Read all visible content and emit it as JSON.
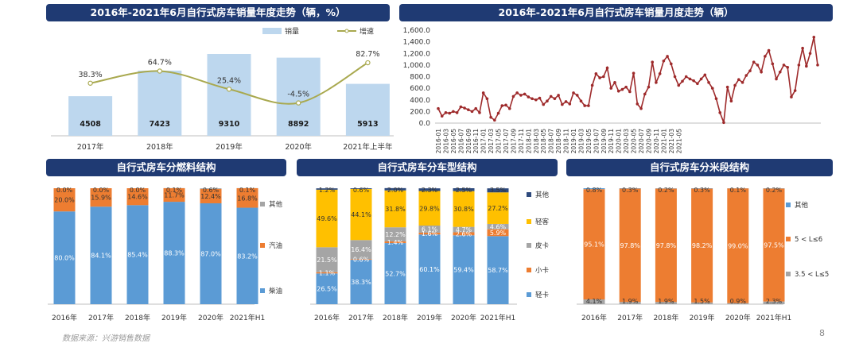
{
  "page": {
    "source": "数据来源：兴游销售数据",
    "page_number": "8"
  },
  "colors": {
    "banner": "#1f3a73",
    "bar_light": "#bdd7ee",
    "blue": "#5b9bd5",
    "orange": "#ed7d31",
    "gray": "#a5a5a5",
    "yellow": "#ffc000",
    "line_olive": "#a9a94f",
    "line_red": "#9e2a2b"
  },
  "chart_data": [
    {
      "id": "annual",
      "type": "bar",
      "title": "2016年-2021年6月自行式房车销量年度走势（辆，%）",
      "categories": [
        "2017年",
        "2018年",
        "2019年",
        "2020年",
        "2021年上半年"
      ],
      "series": [
        {
          "name": "销量",
          "type": "bar",
          "values": [
            4508,
            7423,
            9310,
            8892,
            5913
          ],
          "labels": [
            "4508",
            "7423",
            "9310",
            "8892",
            "5913"
          ]
        },
        {
          "name": "增速",
          "type": "line",
          "values": [
            38.3,
            64.7,
            25.4,
            -4.5,
            82.7
          ],
          "labels": [
            "38.3%",
            "64.7%",
            "25.4%",
            "-4.5%",
            "82.7%"
          ]
        }
      ],
      "legend": "top-right"
    },
    {
      "id": "monthly",
      "type": "line",
      "title": "2016年-2021年6月自行式房车销量月度走势（辆）",
      "ylim": [
        0,
        1600
      ],
      "yticks": [
        "0.0",
        "200.0",
        "400.0",
        "600.0",
        "800.0",
        "1,000.0",
        "1,200.0",
        "1,400.0",
        "1,600.0"
      ],
      "xticks": [
        "2016-01",
        "2016-03",
        "2016-05",
        "2016-07",
        "2016-09",
        "2016-11",
        "2017-01",
        "2017-03",
        "2017-05",
        "2017-07",
        "2017-09",
        "2017-11",
        "2018-01",
        "2018-03",
        "2018-05",
        "2018-07",
        "2018-09",
        "2018-11",
        "2019-01",
        "2019-03",
        "2019-05",
        "2019-07",
        "2019-09",
        "2019-11",
        "2020-01",
        "2020-03",
        "2020-05",
        "2020-07",
        "2020-09",
        "2020-11",
        "2021-01",
        "2021-03",
        "2021-05"
      ],
      "values": [
        250,
        120,
        180,
        170,
        200,
        180,
        280,
        260,
        230,
        200,
        250,
        180,
        520,
        420,
        100,
        50,
        170,
        300,
        310,
        250,
        460,
        520,
        480,
        500,
        450,
        420,
        400,
        430,
        320,
        380,
        460,
        420,
        480,
        320,
        370,
        330,
        520,
        480,
        380,
        300,
        300,
        650,
        850,
        780,
        800,
        950,
        600,
        700,
        550,
        580,
        620,
        540,
        860,
        330,
        250,
        500,
        620,
        1050,
        700,
        850,
        1070,
        1150,
        1020,
        800,
        650,
        720,
        800,
        760,
        730,
        680,
        760,
        830,
        700,
        600,
        420,
        180,
        10,
        620,
        380,
        650,
        750,
        700,
        820,
        900,
        1050,
        1000,
        880,
        1150,
        1250,
        1020,
        760,
        880,
        1000,
        960,
        450,
        560,
        1000,
        1290,
        980,
        1200,
        1480,
        1000
      ],
      "grid": false
    },
    {
      "id": "fuel",
      "type": "bar",
      "title": "自行式房车分燃料结构",
      "categories": [
        "2016年",
        "2017年",
        "2018年",
        "2019年",
        "2020年",
        "2021年H1"
      ],
      "series": [
        {
          "name": "柴油",
          "values": [
            80.0,
            84.1,
            85.4,
            88.3,
            87.0,
            83.2
          ],
          "labels": [
            "80.0%",
            "84.1%",
            "85.4%",
            "88.3%",
            "87.0%",
            "83.2%"
          ]
        },
        {
          "name": "汽油",
          "values": [
            20.0,
            15.9,
            14.6,
            11.7,
            12.4,
            16.8
          ],
          "labels": [
            "20.0%",
            "15.9%",
            "14.6%",
            "11.7%",
            "12.4%",
            "16.8%"
          ]
        },
        {
          "name": "其他",
          "values": [
            0.0,
            0.0,
            0.0,
            0.1,
            0.6,
            0.1
          ],
          "labels": [
            "0.0%",
            "0.0%",
            "0.0%",
            "0.1%",
            "0.6%",
            "0.1%"
          ]
        }
      ],
      "legend": [
        "其他",
        "汽油",
        "柴油"
      ]
    },
    {
      "id": "vehicle",
      "type": "bar",
      "title": "自行式房车分车型结构",
      "categories": [
        "2016年",
        "2017年",
        "2018年",
        "2019年",
        "2020年",
        "2021年H1"
      ],
      "series": [
        {
          "name": "轻卡",
          "values": [
            26.5,
            38.3,
            52.7,
            60.1,
            59.4,
            58.7
          ],
          "labels": [
            "26.5%",
            "38.3%",
            "52.7%",
            "60.1%",
            "59.4%",
            "58.7%"
          ]
        },
        {
          "name": "小卡",
          "values": [
            1.1,
            0.6,
            1.4,
            1.6,
            2.6,
            5.9
          ],
          "labels": [
            "1.1%",
            "0.6%",
            "1.4%",
            "1.6%",
            "2.6%",
            "5.9%"
          ]
        },
        {
          "name": "皮卡",
          "values": [
            21.5,
            16.4,
            12.2,
            6.1,
            4.7,
            4.6
          ],
          "labels": [
            "21.5%",
            "16.4%",
            "12.2%",
            "6.1%",
            "4.7%",
            "4.6%"
          ]
        },
        {
          "name": "轻客",
          "values": [
            49.6,
            44.1,
            31.8,
            29.8,
            30.8,
            27.2
          ],
          "labels": [
            "49.6%",
            "44.1%",
            "31.8%",
            "29.8%",
            "30.8%",
            "27.2%"
          ]
        },
        {
          "name": "其他",
          "values": [
            1.2,
            0.6,
            2.0,
            2.3,
            2.5,
            3.5
          ],
          "labels": [
            "1.2%",
            "0.6%",
            "2.0%",
            "2.3%",
            "2.5%",
            "3.5%"
          ]
        }
      ],
      "legend": [
        "其他",
        "轻客",
        "皮卡",
        "小卡",
        "轻卡"
      ]
    },
    {
      "id": "length",
      "type": "bar",
      "title": "自行式房车分米段结构",
      "categories": [
        "2016年",
        "2017年",
        "2018年",
        "2019年",
        "2020年",
        "2021年H1"
      ],
      "series": [
        {
          "name": "3.5 < L≤5",
          "values": [
            4.1,
            1.9,
            1.9,
            1.5,
            0.9,
            2.3
          ],
          "labels": [
            "4.1%",
            "1.9%",
            "1.9%",
            "1.5%",
            "0.9%",
            "2.3%"
          ]
        },
        {
          "name": "5 < L≤6",
          "values": [
            95.1,
            97.8,
            97.8,
            98.2,
            99.0,
            97.5
          ],
          "labels": [
            "95.1%",
            "97.8%",
            "97.8%",
            "98.2%",
            "99.0%",
            "97.5%"
          ]
        },
        {
          "name": "其他",
          "values": [
            0.8,
            0.3,
            0.2,
            0.3,
            0.1,
            0.2
          ],
          "labels": [
            "0.8%",
            "0.3%",
            "0.2%",
            "0.3%",
            "0.1%",
            "0.2%"
          ]
        }
      ],
      "legend": [
        "其他",
        "5 < L≤6",
        "3.5 < L≤5"
      ]
    }
  ]
}
